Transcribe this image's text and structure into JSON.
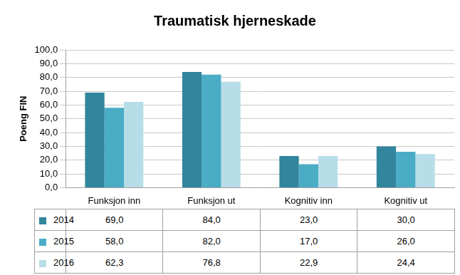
{
  "chart_data": {
    "type": "bar",
    "title": "Traumatisk hjerneskade",
    "y_label": "Poeng FIN",
    "categories": [
      "Funksjon inn",
      "Funksjon ut",
      "Kognitiv inn",
      "Kognitiv ut"
    ],
    "series": [
      {
        "name": "2014",
        "color": "#31859c",
        "values": [
          69.0,
          84.0,
          23.0,
          30.0
        ],
        "value_labels": [
          "69,0",
          "84,0",
          "23,0",
          "30,0"
        ]
      },
      {
        "name": "2015",
        "color": "#4bacc6",
        "values": [
          58.0,
          82.0,
          17.0,
          26.0
        ],
        "value_labels": [
          "58,0",
          "82,0",
          "17,0",
          "26,0"
        ]
      },
      {
        "name": "2016",
        "color": "#b7dde8",
        "values": [
          62.3,
          76.8,
          22.9,
          24.4
        ],
        "value_labels": [
          "62,3",
          "76,8",
          "22,9",
          "24,4"
        ]
      }
    ],
    "ylim": [
      0,
      100
    ],
    "yticks": [
      {
        "value": 0,
        "label": "0,0"
      },
      {
        "value": 10,
        "label": "10,0"
      },
      {
        "value": 20,
        "label": "20,0"
      },
      {
        "value": 30,
        "label": "30,0"
      },
      {
        "value": 40,
        "label": "40,0"
      },
      {
        "value": 50,
        "label": "50,0"
      },
      {
        "value": 60,
        "label": "60,0"
      },
      {
        "value": 70,
        "label": "70,0"
      },
      {
        "value": 80,
        "label": "80,0"
      },
      {
        "value": 90,
        "label": "90,0"
      },
      {
        "value": 100,
        "label": "100,0"
      }
    ],
    "grid": true
  }
}
